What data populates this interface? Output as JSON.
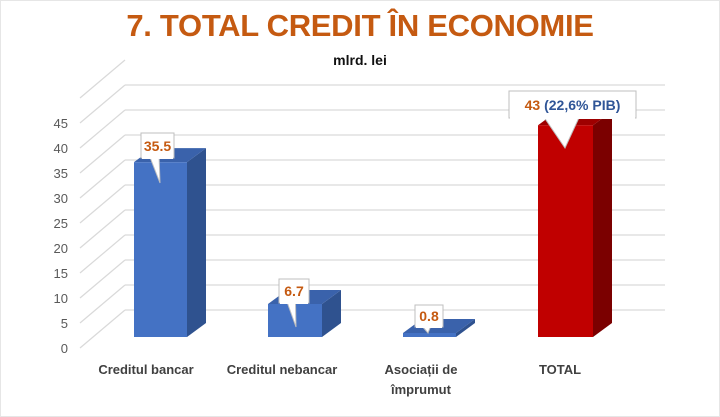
{
  "title": "7. TOTAL CREDIT ÎN ECONOMIE",
  "subtitle": "mlrd. lei",
  "colors": {
    "title": "#c55a11",
    "bar_blue_front": "#4472c4",
    "bar_blue_side": "#2f528f",
    "bar_blue_top": "#3a62ab",
    "bar_red_front": "#c00000",
    "bar_red_side": "#7b0000",
    "bar_red_top": "#9e0000",
    "label_value": "#c55a11",
    "label_pib": "#2f5597",
    "gridline": "#d9d9d9"
  },
  "y_axis": {
    "ticks": [
      "0",
      "5",
      "10",
      "15",
      "20",
      "25",
      "30",
      "35",
      "40",
      "45"
    ]
  },
  "categories": [
    {
      "line1": "Creditul bancar",
      "line2": ""
    },
    {
      "line1": "Creditul nebancar",
      "line2": ""
    },
    {
      "line1": "Asociații de",
      "line2": "împrumut"
    },
    {
      "line1": "TOTAL",
      "line2": ""
    }
  ],
  "labels": {
    "bar0": "35.5",
    "bar1": "6.7",
    "bar2": "0.8",
    "bar3_value": "43",
    "bar3_extra": " (22,6% PIB)"
  },
  "chart_data": {
    "type": "bar",
    "title": "7. TOTAL CREDIT ÎN ECONOMIE",
    "subtitle": "mlrd. lei",
    "categories": [
      "Creditul bancar",
      "Creditul nebancar",
      "Asociații de împrumut",
      "TOTAL"
    ],
    "values": [
      35.5,
      6.7,
      0.8,
      43
    ],
    "annotations": [
      "35.5",
      "6.7",
      "0.8",
      "43 (22,6% PIB)"
    ],
    "xlabel": "",
    "ylabel": "mlrd. lei",
    "ylim": [
      0,
      45
    ],
    "yticks": [
      0,
      5,
      10,
      15,
      20,
      25,
      30,
      35,
      40,
      45
    ],
    "grid": true,
    "style": "3d-column",
    "legend": "none"
  }
}
